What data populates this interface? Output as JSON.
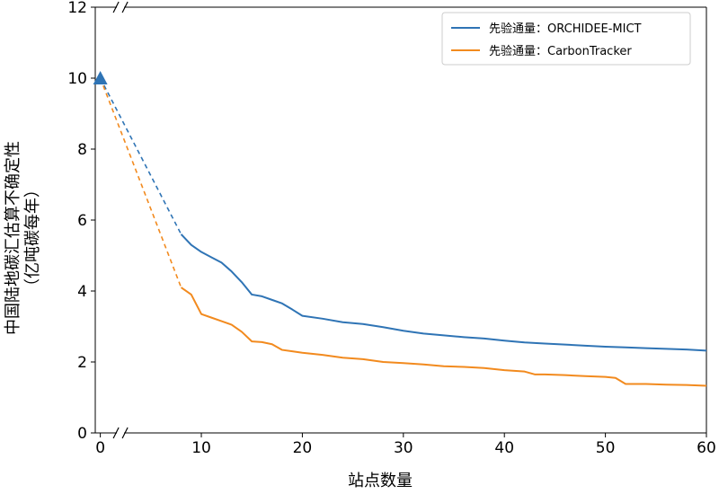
{
  "chart_data": {
    "type": "line",
    "xlabel": "站点数量",
    "ylabel_line1": "中国陆地碳汇估算不确定性",
    "ylabel_line2": "（亿吨碳每年）",
    "xlim": [
      -0.5,
      60
    ],
    "ylim": [
      0,
      12
    ],
    "axis_break_between": [
      0,
      7
    ],
    "x_ticks": [
      0,
      10,
      20,
      30,
      40,
      50,
      60
    ],
    "y_ticks": [
      0,
      2,
      4,
      6,
      8,
      10,
      12
    ],
    "legend_position": "top-right",
    "start_point": {
      "x": 0,
      "y": 10,
      "marker": "triangle",
      "color": "#2f74b5"
    },
    "series": [
      {
        "name": "先验通量：ORCHIDEE-MICT",
        "color": "#2f74b5",
        "x": [
          8,
          9,
          10,
          11,
          12,
          13,
          14,
          15,
          16,
          17,
          18,
          19,
          20,
          22,
          24,
          26,
          28,
          30,
          32,
          34,
          36,
          38,
          40,
          42,
          44,
          46,
          48,
          50,
          52,
          54,
          56,
          58,
          60
        ],
        "y": [
          5.6,
          5.3,
          5.1,
          4.95,
          4.8,
          4.55,
          4.25,
          3.9,
          3.85,
          3.75,
          3.65,
          3.48,
          3.3,
          3.22,
          3.12,
          3.07,
          2.98,
          2.88,
          2.8,
          2.75,
          2.7,
          2.66,
          2.6,
          2.55,
          2.52,
          2.49,
          2.46,
          2.43,
          2.41,
          2.39,
          2.37,
          2.35,
          2.32
        ]
      },
      {
        "name": "先验通量：CarbonTracker",
        "color": "#f28a1e",
        "x": [
          8,
          9,
          10,
          11,
          12,
          13,
          14,
          15,
          16,
          17,
          18,
          19,
          20,
          22,
          24,
          26,
          28,
          30,
          32,
          34,
          36,
          38,
          40,
          42,
          43,
          44,
          46,
          48,
          50,
          51,
          52,
          54,
          56,
          58,
          60
        ],
        "y": [
          4.1,
          3.9,
          3.35,
          3.25,
          3.15,
          3.05,
          2.85,
          2.58,
          2.56,
          2.5,
          2.34,
          2.3,
          2.26,
          2.2,
          2.12,
          2.08,
          2.0,
          1.97,
          1.93,
          1.88,
          1.86,
          1.83,
          1.77,
          1.73,
          1.65,
          1.65,
          1.63,
          1.6,
          1.58,
          1.55,
          1.38,
          1.38,
          1.36,
          1.35,
          1.33
        ]
      }
    ]
  }
}
